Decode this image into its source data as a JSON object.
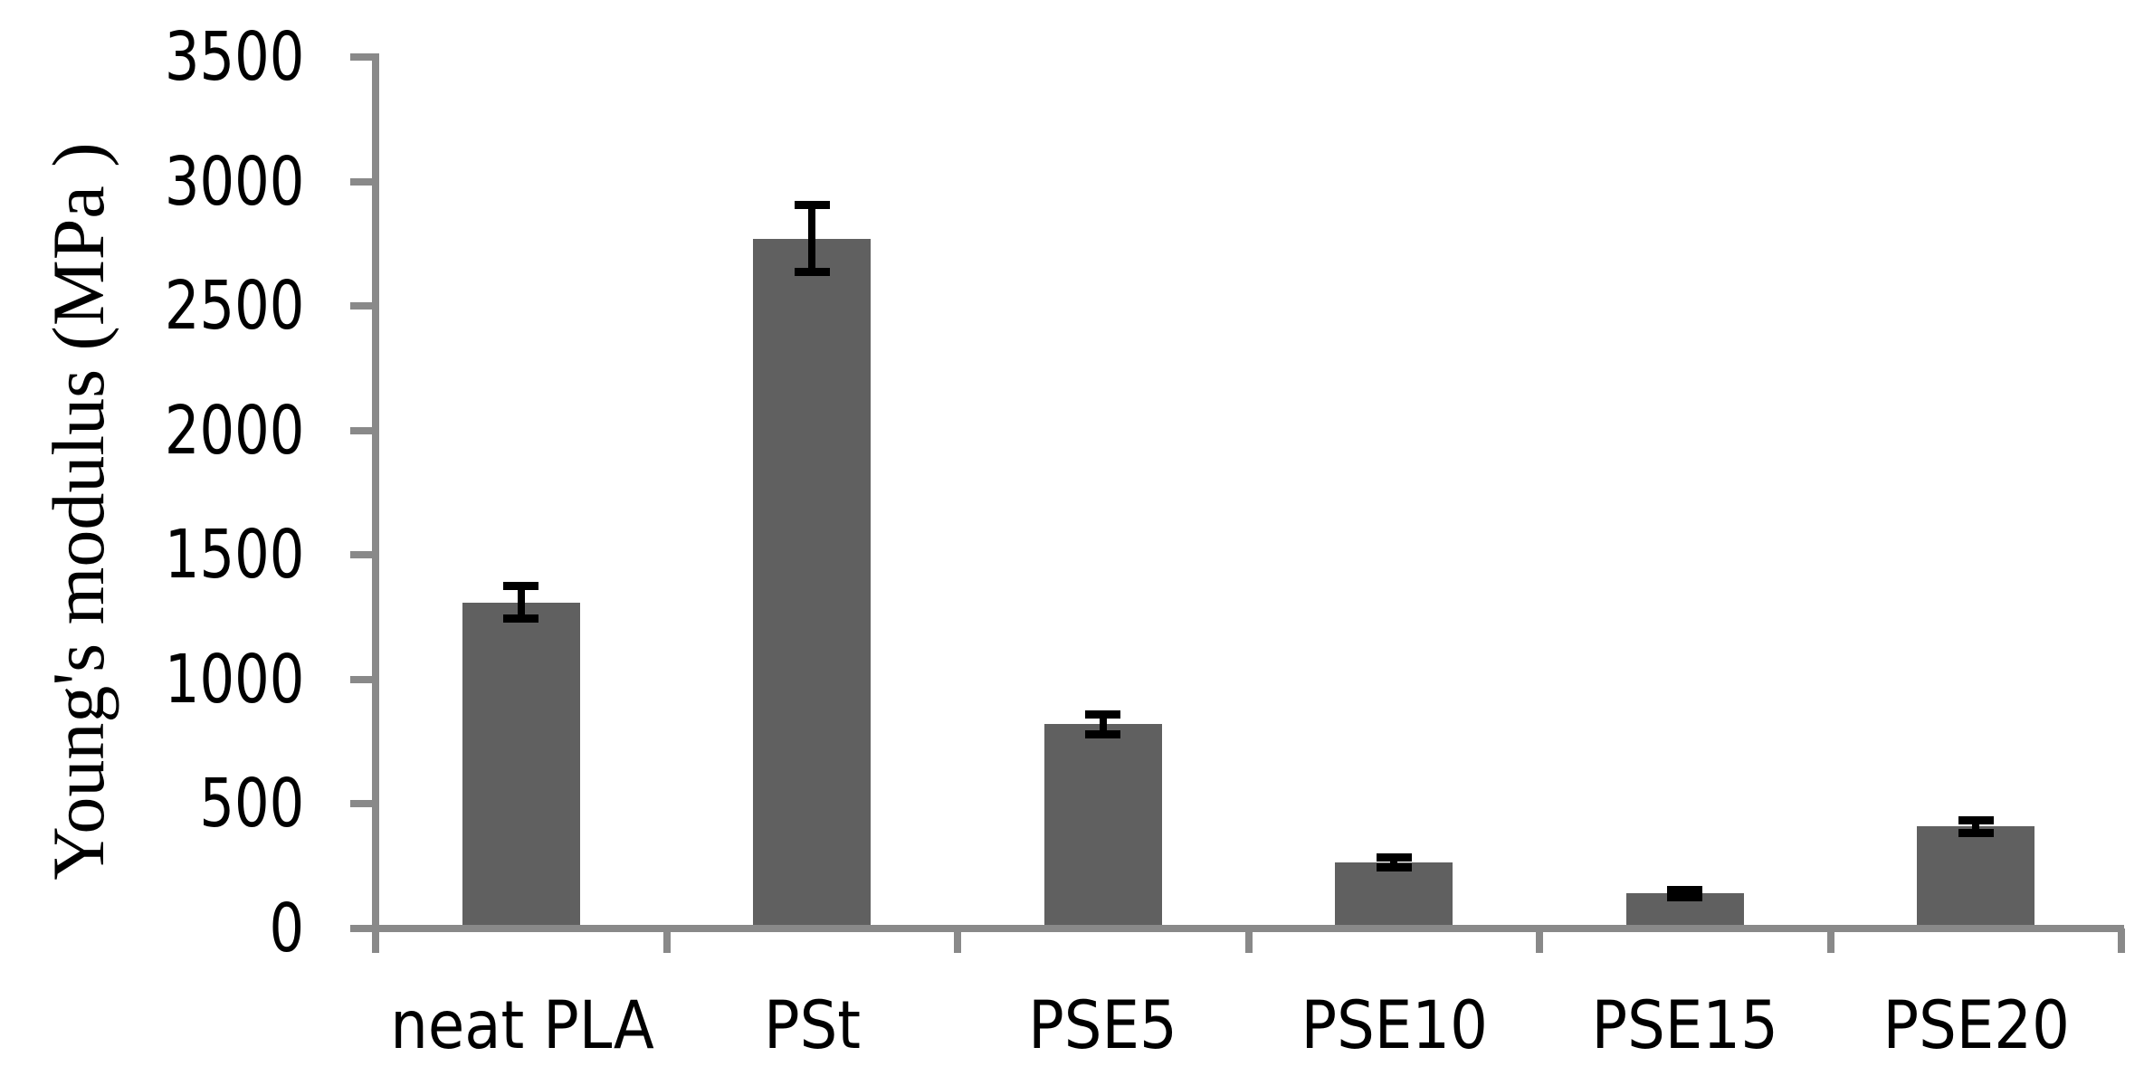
{
  "chart_data": {
    "type": "bar",
    "title": "",
    "xlabel": "",
    "ylabel": "Young's modulus (MPa )",
    "categories": [
      "neat PLA",
      "PSt",
      "PSE5",
      "PSE10",
      "PSE15",
      "PSE20"
    ],
    "values": [
      1310,
      2770,
      820,
      265,
      140,
      410
    ],
    "error_bars": [
      65,
      135,
      40,
      20,
      15,
      25
    ],
    "ylim": [
      0,
      3500
    ],
    "ytick_step": 500,
    "yticks": [
      0,
      500,
      1000,
      1500,
      2000,
      2500,
      3000,
      3500
    ],
    "grid": false,
    "legend": "none",
    "colors": {
      "bar": "#606060",
      "axis": "#898989",
      "error_bar": "#000000",
      "text": "#000000"
    }
  }
}
